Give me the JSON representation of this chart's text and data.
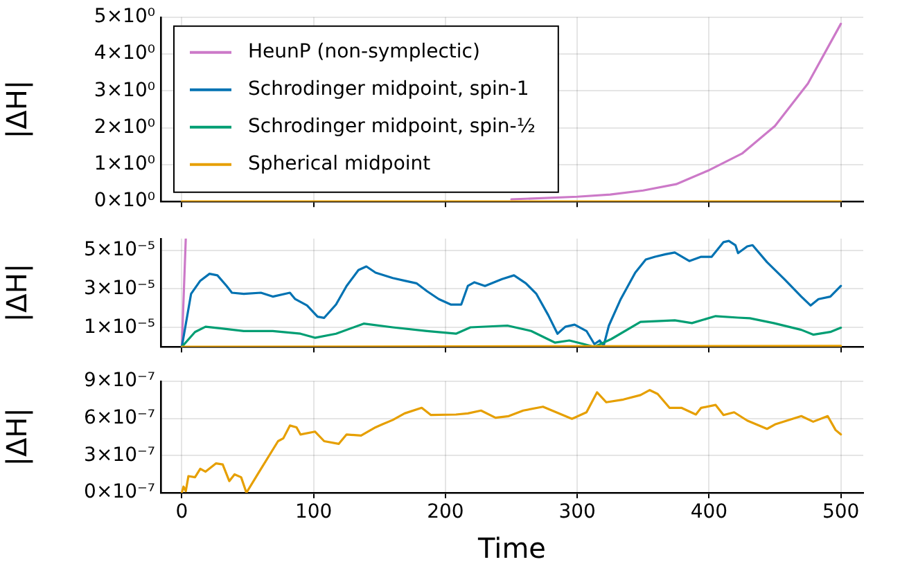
{
  "chart_data": [
    {
      "type": "line",
      "ylabel": "|ΔH|",
      "xlim": [
        -16,
        517
      ],
      "xticks": [
        0,
        100,
        200,
        300,
        400,
        500
      ],
      "ylim": [
        0,
        5
      ],
      "yticks": [
        {
          "value": 0,
          "label": "0×10⁰"
        },
        {
          "value": 1,
          "label": "1×10⁰"
        },
        {
          "value": 2,
          "label": "2×10⁰"
        },
        {
          "value": 3,
          "label": "3×10⁰"
        },
        {
          "value": 4,
          "label": "4×10⁰"
        },
        {
          "value": 5,
          "label": "5×10⁰"
        }
      ],
      "grid": true,
      "legend": "top left",
      "tick_labels": "y",
      "series": [
        {
          "name": "HeunP (non-symplectic)",
          "color": "#cc79c8",
          "x": [
            250,
            300,
            325,
            350,
            375,
            400,
            425,
            450,
            475,
            500
          ],
          "values": [
            0.06,
            0.13,
            0.19,
            0.3,
            0.47,
            0.85,
            1.3,
            2.05,
            3.2,
            4.82
          ]
        },
        {
          "name": "Schrodinger midpoint, spin-1",
          "color": "#0072b2"
        },
        {
          "name": "Schrodinger midpoint, spin-½",
          "color": "#009e73"
        },
        {
          "name": "Spherical midpoint",
          "color": "#e69f00",
          "x": [
            0,
            500
          ],
          "values": [
            0,
            0
          ]
        }
      ]
    },
    {
      "type": "line",
      "ylabel": "|ΔH|",
      "xlim": [
        -16,
        517
      ],
      "xticks": [
        0,
        100,
        200,
        300,
        400,
        500
      ],
      "ylim": [
        0,
        5.6e-05
      ],
      "yticks": [
        {
          "value": 1e-05,
          "label": "1×10⁻⁵"
        },
        {
          "value": 3e-05,
          "label": "3×10⁻⁵"
        },
        {
          "value": 5e-05,
          "label": "5×10⁻⁵"
        }
      ],
      "grid": true,
      "tick_labels": "y",
      "series": [
        {
          "color": "#cc79c8",
          "x": [
            0,
            3
          ],
          "values": [
            0,
            5.6e-05
          ]
        },
        {
          "color": "#0072b2",
          "x": [
            0,
            7,
            14,
            21,
            27,
            34,
            38,
            47,
            60,
            69,
            82,
            86,
            95,
            103,
            108,
            117,
            125,
            134,
            140,
            147,
            160,
            169,
            178,
            186,
            195,
            204,
            212,
            217,
            222,
            230,
            243,
            252,
            261,
            269,
            278,
            285,
            291,
            298,
            307,
            313,
            317,
            320,
            324,
            333,
            344,
            352,
            359,
            367,
            374,
            385,
            394,
            402,
            411,
            415,
            420,
            422,
            429,
            433,
            444,
            457,
            470,
            477,
            483,
            492,
            500
          ],
          "values": [
            0,
            2.74e-05,
            3.42e-05,
            3.78e-05,
            3.7e-05,
            3.15e-05,
            2.8e-05,
            2.74e-05,
            2.8e-05,
            2.6e-05,
            2.8e-05,
            2.47e-05,
            2.14e-05,
            1.56e-05,
            1.5e-05,
            2.19e-05,
            3.15e-05,
            3.97e-05,
            4.16e-05,
            3.84e-05,
            3.56e-05,
            3.42e-05,
            3.29e-05,
            2.88e-05,
            2.47e-05,
            2.19e-05,
            2.19e-05,
            3.15e-05,
            3.34e-05,
            3.15e-05,
            3.51e-05,
            3.7e-05,
            3.29e-05,
            2.74e-05,
            1.64e-05,
            6.8e-06,
            1.04e-05,
            1.15e-05,
            8.2e-06,
            1.4e-06,
            3.3e-06,
            5e-07,
            1.1e-05,
            2.47e-05,
            3.84e-05,
            4.52e-05,
            4.66e-05,
            4.79e-05,
            4.88e-05,
            4.44e-05,
            4.66e-05,
            4.66e-05,
            5.42e-05,
            5.48e-05,
            5.26e-05,
            4.85e-05,
            5.2e-05,
            5.26e-05,
            4.38e-05,
            3.51e-05,
            2.6e-05,
            2.14e-05,
            2.47e-05,
            2.6e-05,
            3.15e-05
          ]
        },
        {
          "color": "#009e73",
          "x": [
            0,
            10,
            18,
            29,
            47,
            69,
            90,
            101,
            117,
            138,
            160,
            186,
            208,
            219,
            247,
            265,
            283,
            294,
            304,
            313,
            326,
            348,
            374,
            387,
            405,
            422,
            431,
            449,
            470,
            479,
            492,
            500
          ],
          "values": [
            0,
            7.7e-06,
            1.04e-05,
            9.6e-06,
            8.2e-06,
            8.2e-06,
            6.8e-06,
            4.7e-06,
            6.8e-06,
            1.2e-05,
            1.01e-05,
            8.2e-06,
            6.8e-06,
            1.01e-05,
            1.1e-05,
            8.2e-06,
            2.2e-06,
            3.3e-06,
            1.6e-06,
            0,
            4.1e-06,
            1.29e-05,
            1.37e-05,
            1.23e-05,
            1.59e-05,
            1.51e-05,
            1.48e-05,
            1.23e-05,
            8.8e-06,
            6.3e-06,
            7.7e-06,
            9.9e-06
          ]
        },
        {
          "color": "#e69f00",
          "x": [
            0,
            500
          ],
          "values": [
            0,
            5e-07
          ]
        }
      ]
    },
    {
      "type": "line",
      "ylabel": "|ΔH|",
      "xlabel": "Time",
      "xlim": [
        -16,
        517
      ],
      "xticks": [
        0,
        100,
        200,
        300,
        400,
        500
      ],
      "ylim": [
        0,
        9e-07
      ],
      "yticks": [
        {
          "value": 0,
          "label": "0×10⁻⁷"
        },
        {
          "value": 3e-07,
          "label": "3×10⁻⁷"
        },
        {
          "value": 6e-07,
          "label": "6×10⁻⁷"
        },
        {
          "value": 9e-07,
          "label": "9×10⁻⁷"
        }
      ],
      "grid": true,
      "series": [
        {
          "color": "#e69f00",
          "x": [
            0,
            1.3,
            3,
            5,
            10,
            14,
            18,
            26,
            31,
            36,
            40,
            45,
            49,
            58,
            73,
            77,
            82,
            87,
            90,
            101,
            108,
            119,
            125,
            136,
            147,
            152,
            160,
            169,
            182,
            189,
            208,
            217,
            227,
            238,
            248,
            259,
            274,
            296,
            307,
            315,
            322,
            335,
            348,
            355,
            361,
            370,
            379,
            390,
            394,
            405,
            411,
            419,
            429,
            444,
            450,
            470,
            479,
            490,
            496,
            500
          ],
          "values": [
            0,
            4.9e-08,
            1.3e-08,
            1.34e-07,
            1.25e-07,
            1.93e-07,
            1.7e-07,
            2.37e-07,
            2.28e-07,
            9.4e-08,
            1.48e-07,
            1.25e-07,
            0,
            1.57e-07,
            4.16e-07,
            4.39e-07,
            5.42e-07,
            5.28e-07,
            4.7e-07,
            4.93e-07,
            4.16e-07,
            3.94e-07,
            4.7e-07,
            4.61e-07,
            5.28e-07,
            5.51e-07,
            5.87e-07,
            6.4e-07,
            6.85e-07,
            6.27e-07,
            6.31e-07,
            6.4e-07,
            6.63e-07,
            6.05e-07,
            6.18e-07,
            6.63e-07,
            6.94e-07,
            5.96e-07,
            6.49e-07,
            8.1e-07,
            7.3e-07,
            7.52e-07,
            7.88e-07,
            8.28e-07,
            7.97e-07,
            6.85e-07,
            6.85e-07,
            6.31e-07,
            6.85e-07,
            7.08e-07,
            6.27e-07,
            6.49e-07,
            5.82e-07,
            5.15e-07,
            5.51e-07,
            6.18e-07,
            5.73e-07,
            6.18e-07,
            5.06e-07,
            4.7e-07
          ]
        }
      ]
    }
  ]
}
